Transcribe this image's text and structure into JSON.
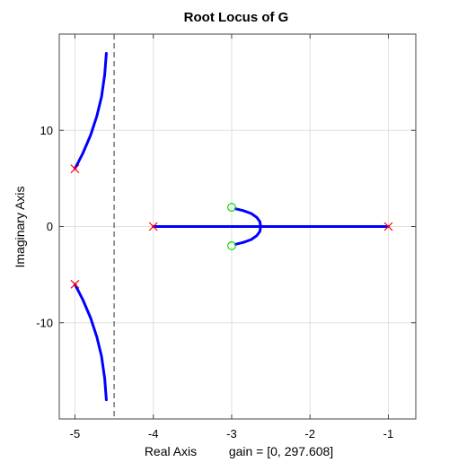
{
  "chart_data": {
    "type": "line",
    "title": "Root Locus of G",
    "xlabel": "Real Axis",
    "gain_label": "gain = [0, 297.608]",
    "ylabel": "Imaginary Axis",
    "xlim": [
      -5.2,
      -0.65
    ],
    "ylim": [
      -20,
      20
    ],
    "xticks": [
      -5,
      -4,
      -3,
      -2,
      -1
    ],
    "xtick_labels": [
      "-5",
      "-4",
      "-3",
      "-2",
      "-1"
    ],
    "yticks": [
      -10,
      0,
      10
    ],
    "ytick_labels": [
      "-10",
      "0",
      "10"
    ],
    "grid": true,
    "asymptote_x": -4.5,
    "colors": {
      "locus": "#0000ff",
      "pole": "#ff0000",
      "zero": "#00dd00",
      "asymptote": "#555555"
    },
    "poles": [
      [
        -5,
        6
      ],
      [
        -5,
        -6
      ],
      [
        -4,
        0
      ],
      [
        -1,
        0
      ]
    ],
    "zeros": [
      [
        -3,
        2
      ],
      [
        -3,
        -2
      ]
    ],
    "branches": [
      {
        "x": [
          -5,
          -4.9,
          -4.8,
          -4.72,
          -4.66,
          -4.62,
          -4.6
        ],
        "y": [
          6,
          7.6,
          9.5,
          11.5,
          13.5,
          15.8,
          18
        ]
      },
      {
        "x": [
          -5,
          -4.9,
          -4.8,
          -4.72,
          -4.66,
          -4.62,
          -4.6
        ],
        "y": [
          -6,
          -7.6,
          -9.5,
          -11.5,
          -13.5,
          -15.8,
          -18
        ]
      },
      {
        "x": [
          -4,
          -3.5,
          -3,
          -2.8,
          -2.65,
          -2.63
        ],
        "y": [
          0,
          0,
          0,
          0,
          0,
          0
        ]
      },
      {
        "x": [
          -1,
          -1.5,
          -2,
          -2.3,
          -2.55,
          -2.63
        ],
        "y": [
          0,
          0,
          0,
          0,
          0,
          0
        ]
      },
      {
        "x": [
          -2.63,
          -2.64,
          -2.68,
          -2.75,
          -2.85,
          -2.95
        ],
        "y": [
          0,
          0.5,
          0.95,
          1.35,
          1.65,
          1.85
        ]
      },
      {
        "x": [
          -2.63,
          -2.64,
          -2.68,
          -2.75,
          -2.85,
          -2.95
        ],
        "y": [
          0,
          -0.5,
          -0.95,
          -1.35,
          -1.65,
          -1.85
        ]
      }
    ]
  }
}
